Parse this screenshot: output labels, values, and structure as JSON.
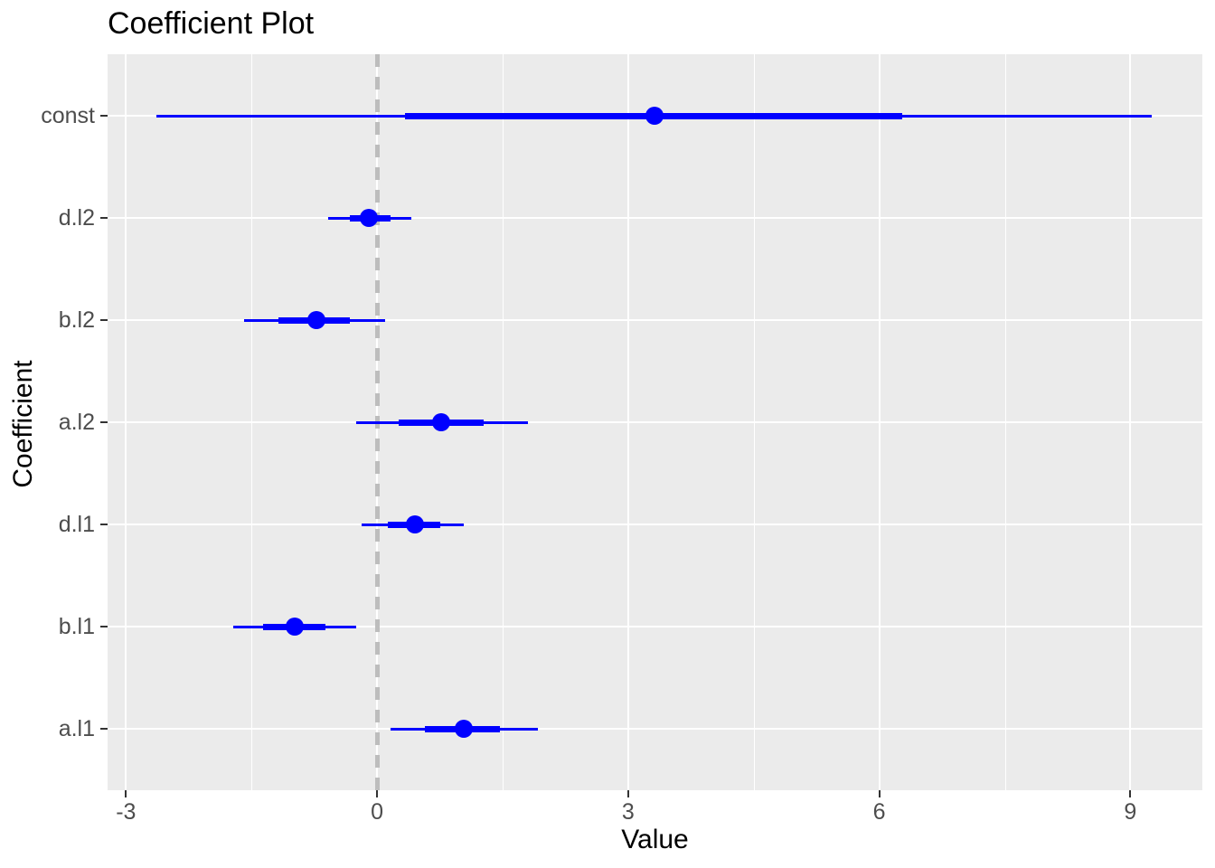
{
  "chart_data": {
    "type": "pointrange",
    "orientation": "horizontal",
    "title": "Coefficient Plot",
    "xlabel": "Value",
    "ylabel": "Coefficient",
    "xlim": [
      -3.22,
      9.86
    ],
    "x_ticks": [
      -3,
      0,
      3,
      6,
      9
    ],
    "x_tick_labels": [
      "-3",
      "0",
      "3",
      "6",
      "9"
    ],
    "x_minor_ticks": [
      -1.5,
      1.5,
      4.5,
      7.5
    ],
    "reference_line_x": 0,
    "grid": "on",
    "categories_top_to_bottom": [
      "const",
      "d.l2",
      "b.l2",
      "a.l2",
      "d.l1",
      "b.l1",
      "a.l1"
    ],
    "series": [
      {
        "coefficient": "const",
        "estimate": 3.31,
        "inner_low": 0.33,
        "inner_high": 6.27,
        "outer_low": -2.64,
        "outer_high": 9.25
      },
      {
        "coefficient": "d.l2",
        "estimate": -0.1,
        "inner_low": -0.33,
        "inner_high": 0.16,
        "outer_low": -0.58,
        "outer_high": 0.41
      },
      {
        "coefficient": "b.l2",
        "estimate": -0.73,
        "inner_low": -1.18,
        "inner_high": -0.32,
        "outer_low": -1.59,
        "outer_high": 0.1
      },
      {
        "coefficient": "a.l2",
        "estimate": 0.77,
        "inner_low": 0.26,
        "inner_high": 1.27,
        "outer_low": -0.25,
        "outer_high": 1.8
      },
      {
        "coefficient": "d.l1",
        "estimate": 0.45,
        "inner_low": 0.13,
        "inner_high": 0.75,
        "outer_low": -0.18,
        "outer_high": 1.04
      },
      {
        "coefficient": "b.l1",
        "estimate": -0.98,
        "inner_low": -1.36,
        "inner_high": -0.62,
        "outer_low": -1.72,
        "outer_high": -0.25
      },
      {
        "coefficient": "a.l1",
        "estimate": 1.04,
        "inner_low": 0.57,
        "inner_high": 1.47,
        "outer_low": 0.16,
        "outer_high": 1.92
      }
    ],
    "colors": {
      "point_and_ci": "#0000FF",
      "panel_background": "#EBEBEB",
      "gridline": "#FFFFFF",
      "reference_line": "#BDBDBD",
      "tick_text": "#4D4D4D",
      "title_text": "#000000"
    }
  }
}
